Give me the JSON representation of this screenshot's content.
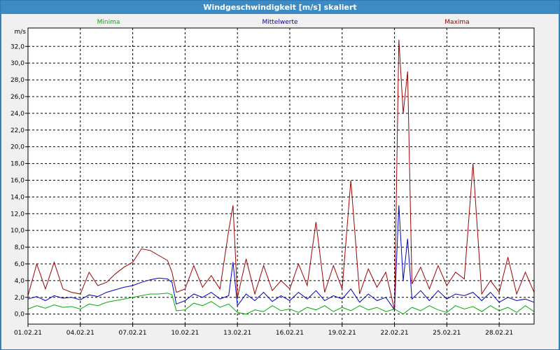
{
  "window": {
    "title": "Windgeschwindigkeit [m/s] skaliert"
  },
  "chart_data": {
    "type": "line",
    "title": "Windgeschwindigkeit [m/s] skaliert",
    "ylabel": "m/s",
    "ylim": [
      -1.2,
      34.2
    ],
    "xlim": [
      "01.02.21",
      "02.03.21"
    ],
    "grid": true,
    "y_ticks": [
      "0,0",
      "2,0",
      "4,0",
      "6,0",
      "8,0",
      "10,0",
      "12,0",
      "14,0",
      "16,0",
      "18,0",
      "20,0",
      "22,0",
      "24,0",
      "26,0",
      "28,0",
      "30,0",
      "32,0"
    ],
    "x_ticks": [
      "01.02.21",
      "04.02.21",
      "07.02.21",
      "10.02.21",
      "13.02.21",
      "16.02.21",
      "19.02.21",
      "22.02.21",
      "25.02.21",
      "28.02.21"
    ],
    "series": [
      {
        "name": "Minima",
        "color": "#00b000",
        "x": [
          "01.02.21",
          "01.02.21 12h",
          "02.02.21",
          "02.02.21 12h",
          "03.02.21",
          "03.02.21 12h",
          "04.02.21",
          "04.02.21 12h",
          "05.02.21",
          "05.02.21 12h",
          "06.02.21",
          "06.02.21 12h",
          "07.02.21",
          "07.02.21 12h",
          "08.02.21",
          "08.02.21 12h",
          "09.02.21",
          "09.02.21 6h",
          "09.02.21 12h",
          "10.02.21",
          "10.02.21 12h",
          "11.02.21",
          "11.02.21 12h",
          "12.02.21",
          "12.02.21 12h",
          "13.02.21",
          "13.02.21 12h",
          "14.02.21",
          "14.02.21 12h",
          "15.02.21",
          "15.02.21 12h",
          "16.02.21",
          "16.02.21 12h",
          "17.02.21",
          "17.02.21 12h",
          "18.02.21",
          "18.02.21 12h",
          "19.02.21",
          "19.02.21 12h",
          "20.02.21",
          "20.02.21 12h",
          "21.02.21",
          "21.02.21 12h",
          "22.02.21",
          "22.02.21 12h",
          "23.02.21",
          "23.02.21 12h",
          "24.02.21",
          "24.02.21 12h",
          "25.02.21",
          "25.02.21 12h",
          "26.02.21",
          "26.02.21 12h",
          "27.02.21",
          "27.02.21 12h",
          "28.02.21",
          "28.02.21 12h",
          "01.03.21",
          "01.03.21 12h",
          "02.03.21"
        ],
        "y": [
          0.6,
          1.0,
          0.7,
          1.1,
          0.8,
          0.9,
          0.6,
          1.2,
          1.0,
          1.4,
          1.6,
          1.8,
          2.0,
          2.2,
          2.4,
          2.4,
          2.5,
          2.3,
          0.4,
          0.5,
          1.3,
          1.0,
          1.5,
          0.8,
          1.2,
          0.2,
          0.0,
          0.5,
          0.3,
          1.0,
          0.4,
          0.6,
          0.2,
          0.8,
          0.5,
          1.0,
          0.3,
          0.8,
          0.4,
          1.0,
          0.5,
          0.8,
          0.3,
          0.6,
          0.0,
          0.8,
          0.4,
          1.0,
          0.5,
          0.2,
          1.0,
          0.6,
          0.9,
          0.3,
          1.0,
          0.4,
          0.8,
          0.2,
          1.0,
          0.3
        ]
      },
      {
        "name": "Mittelwerte",
        "color": "#0000c8",
        "x": [
          "01.02.21",
          "01.02.21 12h",
          "02.02.21",
          "02.02.21 12h",
          "03.02.21",
          "03.02.21 12h",
          "04.02.21",
          "04.02.21 12h",
          "05.02.21",
          "05.02.21 12h",
          "06.02.21",
          "06.02.21 12h",
          "07.02.21",
          "07.02.21 12h",
          "08.02.21",
          "08.02.21 12h",
          "09.02.21",
          "09.02.21 6h",
          "09.02.21 12h",
          "10.02.21",
          "10.02.21 12h",
          "11.02.21",
          "11.02.21 12h",
          "12.02.21",
          "12.02.21 12h",
          "12.02.21 18h",
          "13.02.21",
          "13.02.21 12h",
          "14.02.21",
          "14.02.21 12h",
          "15.02.21",
          "15.02.21 12h",
          "16.02.21",
          "16.02.21 12h",
          "17.02.21",
          "17.02.21 12h",
          "18.02.21",
          "18.02.21 12h",
          "19.02.21",
          "19.02.21 12h",
          "20.02.21",
          "20.02.21 12h",
          "21.02.21",
          "21.02.21 12h",
          "22.02.21",
          "22.02.21 6h",
          "22.02.21 12h",
          "22.02.21 18h",
          "23.02.21",
          "23.02.21 12h",
          "24.02.21",
          "24.02.21 12h",
          "25.02.21",
          "25.02.21 12h",
          "26.02.21",
          "26.02.21 12h",
          "27.02.21",
          "27.02.21 12h",
          "28.02.21",
          "28.02.21 12h",
          "01.03.21",
          "01.03.21 12h",
          "02.03.21"
        ],
        "y": [
          1.8,
          2.1,
          1.6,
          2.2,
          1.9,
          2.0,
          1.7,
          2.3,
          2.1,
          2.6,
          2.9,
          3.2,
          3.4,
          3.8,
          4.1,
          4.3,
          4.2,
          3.8,
          1.2,
          1.6,
          2.4,
          2.0,
          2.6,
          1.8,
          2.2,
          6.2,
          1.0,
          2.4,
          1.6,
          2.6,
          1.5,
          2.2,
          1.6,
          2.6,
          1.8,
          2.8,
          1.6,
          2.2,
          1.8,
          3.0,
          1.4,
          2.4,
          1.6,
          2.0,
          0.5,
          13.0,
          4.0,
          9.0,
          1.8,
          2.8,
          1.6,
          2.8,
          1.8,
          2.4,
          2.2,
          2.6,
          1.6,
          2.6,
          1.4,
          2.0,
          1.6,
          1.8,
          1.4
        ]
      },
      {
        "name": "Maxima",
        "color": "#a00000",
        "x": [
          "01.02.21",
          "01.02.21 12h",
          "02.02.21",
          "02.02.21 12h",
          "03.02.21",
          "03.02.21 12h",
          "04.02.21",
          "04.02.21 12h",
          "05.02.21",
          "05.02.21 12h",
          "06.02.21",
          "06.02.21 12h",
          "07.02.21",
          "07.02.21 12h",
          "08.02.21",
          "08.02.21 12h",
          "09.02.21",
          "09.02.21 6h",
          "09.02.21 12h",
          "10.02.21",
          "10.02.21 12h",
          "11.02.21",
          "11.02.21 12h",
          "12.02.21",
          "12.02.21 12h",
          "12.02.21 18h",
          "13.02.21",
          "13.02.21 12h",
          "14.02.21",
          "14.02.21 12h",
          "15.02.21",
          "15.02.21 12h",
          "16.02.21",
          "16.02.21 12h",
          "17.02.21",
          "17.02.21 12h",
          "18.02.21",
          "18.02.21 12h",
          "19.02.21",
          "19.02.21 12h",
          "20.02.21",
          "20.02.21 12h",
          "21.02.21",
          "21.02.21 12h",
          "22.02.21",
          "22.02.21 6h",
          "22.02.21 12h",
          "22.02.21 18h",
          "23.02.21",
          "23.02.21 12h",
          "24.02.21",
          "24.02.21 12h",
          "25.02.21",
          "25.02.21 12h",
          "26.02.21",
          "26.02.21 12h",
          "27.02.21",
          "27.02.21 12h",
          "28.02.21",
          "28.02.21 12h",
          "01.03.21",
          "01.03.21 12h",
          "02.03.21"
        ],
        "y": [
          2.2,
          6.0,
          3.0,
          6.2,
          3.0,
          2.6,
          2.4,
          5.0,
          3.4,
          3.8,
          4.8,
          5.6,
          6.2,
          7.8,
          7.6,
          7.0,
          6.4,
          5.0,
          2.6,
          3.0,
          5.8,
          3.2,
          4.6,
          3.0,
          10.0,
          13.0,
          2.0,
          6.6,
          2.4,
          5.8,
          2.8,
          4.0,
          3.0,
          6.0,
          3.4,
          11.0,
          2.6,
          5.8,
          3.0,
          16.0,
          2.4,
          5.4,
          3.2,
          5.0,
          0.5,
          32.8,
          24.0,
          29.0,
          3.6,
          5.6,
          3.0,
          5.8,
          3.4,
          5.0,
          4.2,
          18.0,
          2.4,
          4.0,
          2.6,
          6.8,
          2.4,
          5.0,
          2.6
        ]
      }
    ]
  }
}
